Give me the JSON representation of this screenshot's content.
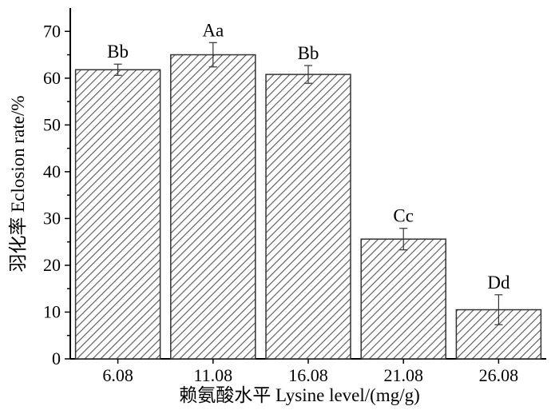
{
  "chart_data": {
    "type": "bar",
    "categories": [
      "6.08",
      "11.08",
      "16.08",
      "21.08",
      "26.08"
    ],
    "values": [
      61.8,
      65.0,
      60.8,
      25.6,
      10.5
    ],
    "errors": [
      1.2,
      2.6,
      1.9,
      2.3,
      3.2
    ],
    "significance": [
      "Bb",
      "Aa",
      "Bb",
      "Cc",
      "Dd"
    ],
    "xlabel": "赖氨酸水平 Lysine level/(mg/g)",
    "ylabel": "羽化率 Eclosion rate/%",
    "ylim": [
      0,
      75
    ],
    "yticks": [
      "0",
      "10",
      "20",
      "30",
      "40",
      "50",
      "60",
      "70"
    ],
    "grid": false,
    "legend": "none",
    "bar_pattern": "diagonal-hatch",
    "colors": {
      "bar_stroke": "#333333",
      "hatch": "#555555",
      "axis": "#000000"
    }
  }
}
